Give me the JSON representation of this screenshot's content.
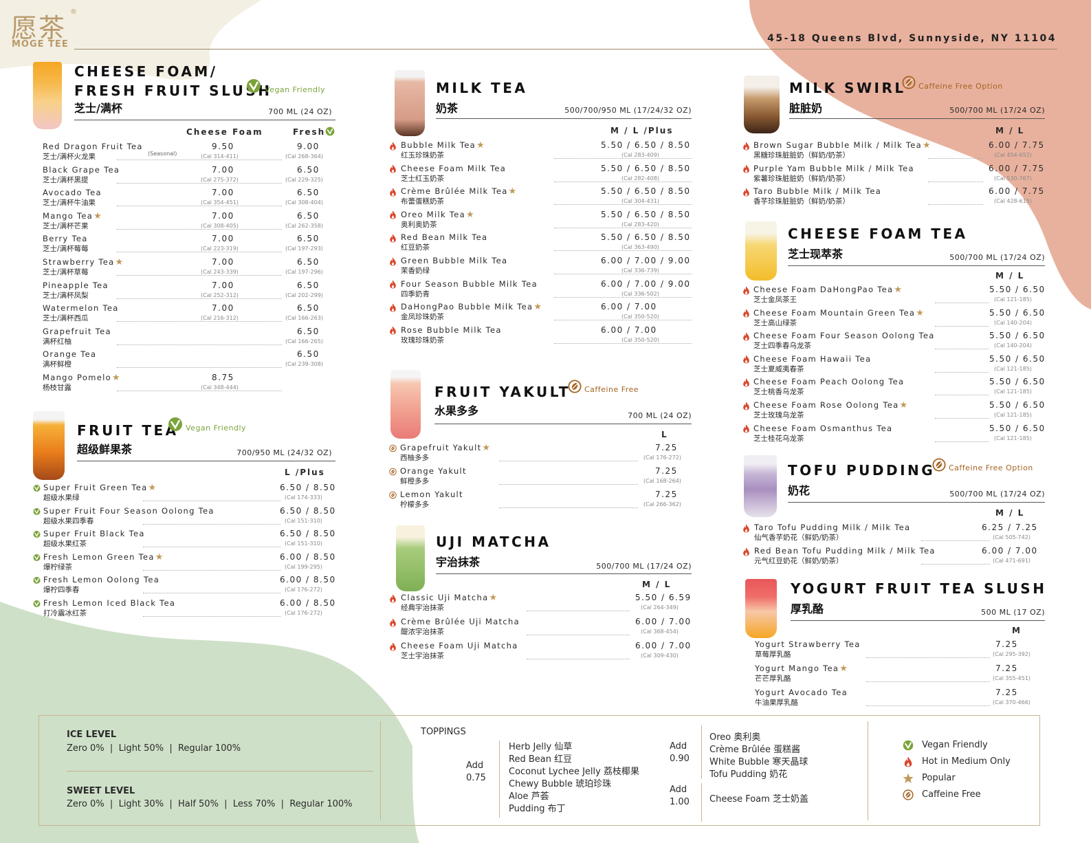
{
  "brand": {
    "cn": "愿茶",
    "reg": "®",
    "en": "MÖGE TEE"
  },
  "address": "45-18 Queens Blvd, Sunnyside, NY 11104",
  "colors": {
    "green": "#7aa33a",
    "brown": "#a56321",
    "red": "#d9472b",
    "gold": "#c19a5b",
    "peach": "#e8b19e",
    "sage": "#cfe0c8"
  },
  "cheese_foam": {
    "title1": "CHEESE FOAM/",
    "title2": "FRESH FRUIT SLUSH",
    "cn": "芝士/满杯",
    "tag": "Vegan Friendly",
    "volume": "700 ML (24 OZ)",
    "col1": "Cheese Foam",
    "col2": "Fresh",
    "items": [
      {
        "en": "Red Dragon Fruit Tea",
        "cn": "芝士/满杯火龙果",
        "note": "(Seasonal)",
        "p1": "9.50",
        "c1": "(Cal 314-411)",
        "p2": "9.00",
        "c2": "(Cal 268-364)"
      },
      {
        "en": "Black Grape Tea",
        "cn": "芝士/满杯黑提",
        "p1": "7.00",
        "c1": "(Cal 275-372)",
        "p2": "6.50",
        "c2": "(Cal 229-325)"
      },
      {
        "en": "Avocado Tea",
        "cn": "芝士/满杯牛油果",
        "p1": "7.00",
        "c1": "(Cal 354-451)",
        "p2": "6.50",
        "c2": "(Cal 308-404)"
      },
      {
        "en": "Mango Tea",
        "cn": "芝士/满杯芒果",
        "star": "★",
        "p1": "7.00",
        "c1": "(Cal 308-405)",
        "p2": "6.50",
        "c2": "(Cal 262-358)"
      },
      {
        "en": "Berry Tea",
        "cn": "芝士/满杯莓莓",
        "p1": "7.00",
        "c1": "(Cal 223-319)",
        "p2": "6.50",
        "c2": "(Cal 197-293)"
      },
      {
        "en": "Strawberry Tea",
        "cn": "芝士/满杯草莓",
        "star": "★",
        "p1": "7.00",
        "c1": "(Cal 243-339)",
        "p2": "6.50",
        "c2": "(Cal 197-296)"
      },
      {
        "en": "Pineapple Tea",
        "cn": "芝士/满杯凤梨",
        "p1": "7.00",
        "c1": "(Cal 252-312)",
        "p2": "6.50",
        "c2": "(Cal 202-299)"
      },
      {
        "en": "Watermelon Tea",
        "cn": "芝士/满杯西瓜",
        "p1": "7.00",
        "c1": "(Cal 216-312)",
        "p2": "6.50",
        "c2": "(Cal 166-263)"
      },
      {
        "en": "Grapefruit Tea",
        "cn": "满杯红柚",
        "p2": "6.50",
        "c2": "(Cal 166-265)"
      },
      {
        "en": "Orange Tea",
        "cn": "满杯鲜橙",
        "p2": "6.50",
        "c2": "(Cal 239-308)"
      },
      {
        "en": "Mango Pomelo",
        "cn": "杨枝甘露",
        "star": "★",
        "p1": "8.75",
        "c1": "(Cal 348-444)"
      }
    ]
  },
  "fruit_tea": {
    "title": "FRUIT TEA",
    "cn": "超级鲜果茶",
    "tag": "Vegan Friendly",
    "volume": "700/950 ML (24/32 OZ)",
    "col": "L   /Plus",
    "items": [
      {
        "en": "Super Fruit Green Tea",
        "cn": "超级水果绿",
        "star": "★",
        "price": "6.50 / 8.50",
        "cal": "(Cal 174-333)"
      },
      {
        "en": "Super Fruit Four Season Oolong Tea",
        "cn": "超级水果四季春",
        "price": "6.50 / 8.50",
        "cal": "(Cal 151-310)"
      },
      {
        "en": "Super Fruit Black Tea",
        "cn": "超级水果红茶",
        "price": "6.50 / 8.50",
        "cal": "(Cal 151-310)"
      },
      {
        "en": "Fresh Lemon Green Tea",
        "cn": "爆柠绿茶",
        "star": "★",
        "price": "6.00 / 8.50",
        "cal": "(Cal 199-295)"
      },
      {
        "en": "Fresh Lemon Oolong Tea",
        "cn": "爆柠四季春",
        "price": "6.00 / 8.50",
        "cal": "(Cal 176-272)"
      },
      {
        "en": "Fresh Lemon Iced Black Tea",
        "cn": "打冷震冰红茶",
        "price": "6.00 / 8.50",
        "cal": "(Cal 176-272)"
      }
    ]
  },
  "milk_tea": {
    "title": "MILK TEA",
    "cn": "奶茶",
    "volume": "500/700/950 ML (17/24/32 OZ)",
    "col": "M  /  L   /Plus",
    "items": [
      {
        "en": "Bubble Milk Tea",
        "cn": "红玉珍珠奶茶",
        "star": "★",
        "price": "5.50 / 6.50 / 8.50",
        "cal": "(Cal 283-409)"
      },
      {
        "en": "Cheese Foam Milk Tea",
        "cn": "芝士红玉奶茶",
        "price": "5.50 / 6.50 / 8.50",
        "cal": "(Cal 282-408)"
      },
      {
        "en": "Crème Brûlée Milk Tea",
        "cn": "布蕾蛋糕奶茶",
        "star": "★",
        "price": "5.50 / 6.50 / 8.50",
        "cal": "(Cal 304-431)"
      },
      {
        "en": "Oreo Milk Tea",
        "cn": "奥利奥奶茶",
        "star": "★",
        "price": "5.50 / 6.50 / 8.50",
        "cal": "(Cal 283-420)"
      },
      {
        "en": "Red Bean Milk Tea",
        "cn": "红豆奶茶",
        "price": "5.50 / 6.50 / 8.50",
        "cal": "(Cal 363-490)"
      },
      {
        "en": "Green Bubble Milk Tea",
        "cn": "茉香奶绿",
        "price": "6.00 / 7.00 / 9.00",
        "cal": "(Cal 336-739)"
      },
      {
        "en": "Four Season Bubble Milk Tea",
        "cn": "四季奶青",
        "price": "6.00 / 7.00 / 9.00",
        "cal": "(Cal 336-502)"
      },
      {
        "en": "DaHongPao Bubble Milk Tea",
        "cn": "金凤珍珠奶茶",
        "star": "★",
        "price": "6.00 / 7.00",
        "cal": "(Cal 350-520)"
      },
      {
        "en": "Rose Bubble Milk Tea",
        "cn": "玫瑰珍珠奶茶",
        "price": "6.00 / 7.00",
        "cal": "(Cal 350-520)"
      }
    ]
  },
  "fruit_yakult": {
    "title": "FRUIT YAKULT",
    "cn": "水果多多",
    "tag": "Caffeine Free",
    "volume": "700 ML (24 OZ)",
    "col": "L",
    "items": [
      {
        "en": "Grapefruit Yakult",
        "cn": "西柚多多",
        "star": "★",
        "price": "7.25",
        "cal": "(Cal 176-272)"
      },
      {
        "en": "Orange Yakult",
        "cn": "鲜橙多多",
        "price": "7.25",
        "cal": "(Cal 168-264)"
      },
      {
        "en": "Lemon Yakult",
        "cn": "柠檬多多",
        "price": "7.25",
        "cal": "(Cal 266-362)"
      }
    ]
  },
  "uji_matcha": {
    "title": "UJI MATCHA",
    "cn": "宇治抹茶",
    "volume": "500/700 ML (17/24 OZ)",
    "col": "M  /  L",
    "items": [
      {
        "en": "Classic Uji Matcha",
        "cn": "经典宇治抹茶",
        "star": "★",
        "price": "5.50 / 6.59",
        "cal": "(Cal 264-349)"
      },
      {
        "en": "Crème Brûlée Uji Matcha",
        "cn": "醍浓宇治抹茶",
        "price": "6.00 / 7.00",
        "cal": "(Cal 368-454)"
      },
      {
        "en": "Cheese Foam Uji Matcha",
        "cn": "芝士宇治抹茶",
        "price": "6.00 / 7.00",
        "cal": "(Cal 309-430)"
      }
    ]
  },
  "milk_swirl": {
    "title": "MILK SWIRL",
    "cn": "脏脏奶",
    "tag": "Caffeine Free Option",
    "volume": "500/700 ML (17/24 OZ)",
    "col": "M  /  L",
    "items": [
      {
        "en": "Brown Sugar Bubble Milk / Milk Tea",
        "cn": "黑糖珍珠脏脏奶（鲜奶/奶茶）",
        "star": "★",
        "price": "6.00 / 7.75",
        "cal": "(Cal 454-652)"
      },
      {
        "en": "Purple Yam Bubble Milk / Milk Tea",
        "cn": "紫薯珍珠脏脏奶（鲜奶/奶茶）",
        "price": "6.00 / 7.75",
        "cal": "(Cal 530-767)"
      },
      {
        "en": "Taro Bubble Milk / Milk Tea",
        "cn": "香芋珍珠脏脏奶（鲜奶/奶茶）",
        "price": "6.00 / 7.75",
        "cal": "(Cal 428-615)"
      }
    ]
  },
  "cheese_foam_tea": {
    "title": "CHEESE FOAM TEA",
    "cn": "芝士现萃茶",
    "volume": "500/700 ML (17/24 OZ)",
    "col": "M  /  L",
    "items": [
      {
        "en": "Cheese Foam DaHongPao Tea",
        "cn": "芝士金凤茶王",
        "star": "★",
        "price": "5.50 / 6.50",
        "cal": "(Cal 121-185)"
      },
      {
        "en": "Cheese Foam Mountain Green Tea",
        "cn": "芝士高山绿茶",
        "star": "★",
        "price": "5.50 / 6.50",
        "cal": "(Cal 140-204)"
      },
      {
        "en": "Cheese Foam Four Season Oolong Tea",
        "cn": "芝士四季春乌龙茶",
        "price": "5.50 / 6.50",
        "cal": "(Cal 140-204)"
      },
      {
        "en": "Cheese Foam Hawaii Tea",
        "cn": "芝士夏威夷春茶",
        "price": "5.50 / 6.50",
        "cal": "(Cal 121-185)"
      },
      {
        "en": "Cheese Foam Peach Oolong Tea",
        "cn": "芝士桃香乌龙茶",
        "price": "5.50 / 6.50",
        "cal": "(Cal 121-185)"
      },
      {
        "en": "Cheese Foam Rose Oolong Tea",
        "cn": "芝士玫瑰乌龙茶",
        "star": "★",
        "price": "5.50 / 6.50",
        "cal": "(Cal 121-185)"
      },
      {
        "en": "Cheese Foam Osmanthus Tea",
        "cn": "芝士桂花乌龙茶",
        "price": "5.50 / 6.50",
        "cal": "(Cal 121-185)"
      }
    ]
  },
  "tofu_pudding": {
    "title": "TOFU PUDDING",
    "cn": "奶花",
    "tag": "Caffeine Free Option",
    "volume": "500/700 ML (17/24 OZ)",
    "col": "M  /  L",
    "items": [
      {
        "en": "Taro Tofu Pudding Milk / Milk Tea",
        "cn": "仙气香芋奶花（鲜奶/奶茶）",
        "price": "6.25 / 7.25",
        "cal": "(Cal 505-742)"
      },
      {
        "en": "Red Bean Tofu Pudding Milk / Milk Tea",
        "cn": "元气红豆奶花（鲜奶/奶茶）",
        "price": "6.00 / 7.00",
        "cal": "(Cal 471-691)"
      }
    ]
  },
  "yogurt": {
    "title": "YOGURT FRUIT TEA SLUSH",
    "cn": "厚乳酪",
    "volume": "500 ML (17 OZ)",
    "col": "M",
    "items": [
      {
        "en": "Yogurt Strawberry Tea",
        "cn": "草莓厚乳酪",
        "price": "7.25",
        "cal": "(Cal 295-392)"
      },
      {
        "en": "Yogurt Mango Tea",
        "cn": "芒芒厚乳酪",
        "star": "★",
        "price": "7.25",
        "cal": "(Cal 355-451)"
      },
      {
        "en": "Yogurt Avocado Tea",
        "cn": "牛油果厚乳酪",
        "price": "7.25",
        "cal": "(Cal 370-466)"
      }
    ]
  },
  "footer": {
    "ice_title": "ICE LEVEL",
    "ice_opts": "Zero 0%  |  Light 50%  |  Regular 100%",
    "sweet_title": "SWEET LEVEL",
    "sweet_opts": "Zero 0%  |  Light 30%  |  Half 50%  |  Less 70%  |  Regular 100%",
    "toppings_title": "TOPPINGS",
    "add1": "Add",
    "add1_price": "0.75",
    "group1": [
      "Herb Jelly 仙草",
      "Red Bean 红豆",
      "Coconut Lychee Jelly 荔枝椰果",
      "Chewy Bubble 琥珀珍珠",
      "Aloe 芦荟",
      "Pudding 布丁"
    ],
    "add2": "Add",
    "add2_price": "0.90",
    "group2": [
      "Oreo 奥利奥",
      "Crème Brûlée 蛋糕酱",
      "White Bubble 寒天晶球",
      "Tofu Pudding 奶花"
    ],
    "add3": "Add",
    "add3_price": "1.00",
    "group3": [
      "Cheese Foam 芝士奶盖"
    ],
    "legend": [
      {
        "icon": "vegan",
        "label": "Vegan Friendly"
      },
      {
        "icon": "hot",
        "label": "Hot in Medium Only"
      },
      {
        "icon": "star",
        "label": "Popular"
      },
      {
        "icon": "bean",
        "label": "Caffeine Free"
      }
    ]
  }
}
